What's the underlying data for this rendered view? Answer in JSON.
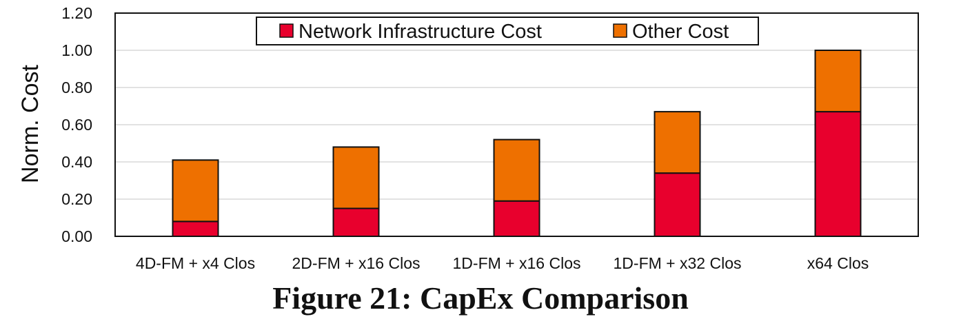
{
  "caption": "Figure 21: CapEx Comparison",
  "colors": {
    "network": "#e8002d",
    "other": "#ee7000"
  },
  "chart_data": {
    "type": "bar",
    "stacked": true,
    "categories": [
      "4D-FM + x4 Clos",
      "2D-FM + x16 Clos",
      "1D-FM + x16 Clos",
      "1D-FM + x32 Clos",
      "x64 Clos"
    ],
    "series": [
      {
        "name": "Network Infrastructure Cost",
        "values": [
          0.08,
          0.15,
          0.19,
          0.34,
          0.67
        ]
      },
      {
        "name": "Other Cost",
        "values": [
          0.33,
          0.33,
          0.33,
          0.33,
          0.33
        ]
      }
    ],
    "ylabel": "Norm. Cost",
    "xlabel": "",
    "ylim": [
      0,
      1.2
    ],
    "yticks": [
      "0.00",
      "0.20",
      "0.40",
      "0.60",
      "0.80",
      "1.00",
      "1.20"
    ],
    "grid": true,
    "legend_position": "top-center"
  }
}
